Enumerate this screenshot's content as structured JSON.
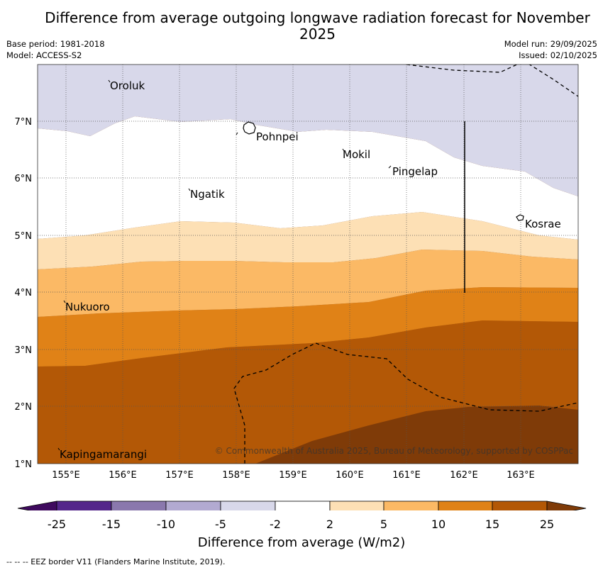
{
  "title": "Difference from average outgoing longwave radiation forecast for November 2025",
  "meta": {
    "base_period": "Base period: 1981-2018",
    "model": "Model: ACCESS-S2",
    "model_run": "Model run: 29/09/2025",
    "issued": "Issued: 02/10/2025"
  },
  "axes": {
    "x_ticks": [
      "155°E",
      "156°E",
      "157°E",
      "158°E",
      "159°E",
      "160°E",
      "161°E",
      "162°E",
      "163°E"
    ],
    "y_ticks": [
      "1°N",
      "2°N",
      "3°N",
      "4°N",
      "5°N",
      "6°N",
      "7°N"
    ]
  },
  "places": [
    {
      "name": "Oroluk"
    },
    {
      "name": "Pohnpei"
    },
    {
      "name": "Mokil"
    },
    {
      "name": "Pingelap"
    },
    {
      "name": "Ngatik"
    },
    {
      "name": "Kosrae"
    },
    {
      "name": "Nukuoro"
    },
    {
      "name": "Kapingamarangi"
    }
  ],
  "copyright": "© Commonwealth of Australia 2025, Bureau of Meteorology, supported by COSPPac",
  "colorbar": {
    "ticks": [
      "-25",
      "-15",
      "-10",
      "-5",
      "-2",
      "2",
      "5",
      "10",
      "15",
      "25"
    ],
    "colors": [
      "#3f0a5e",
      "#54268a",
      "#8a78ad",
      "#b2aad1",
      "#d8d8ea",
      "#ffffff",
      "#fde0b5",
      "#fbb965",
      "#e08217",
      "#b35806",
      "#7f3b08"
    ],
    "title": "Difference from average (W/m2)"
  },
  "footnote": "--  --  -- EEZ border V11 (Flanders Marine Institute, 2019)."
}
